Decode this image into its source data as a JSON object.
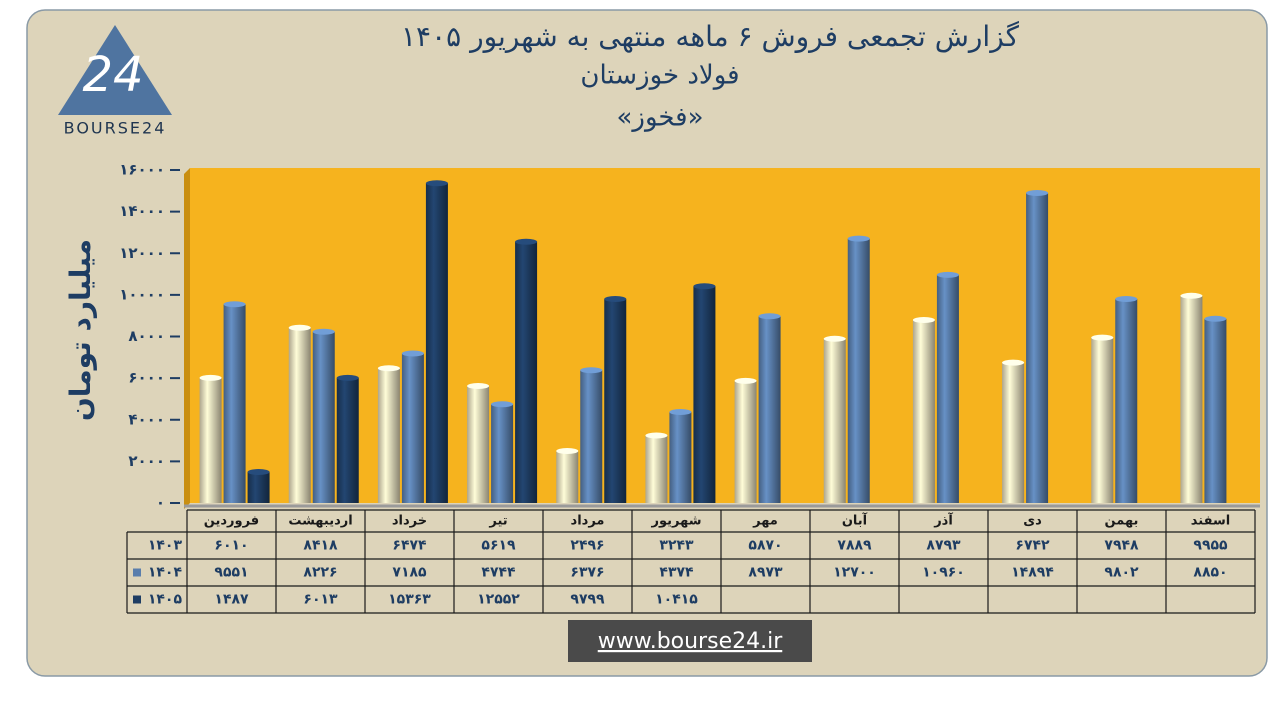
{
  "chart_data": {
    "type": "bar",
    "title": "گزارش تجمعی فروش ۶ ماهه منتهی به شهریور ۱۴۰۵",
    "subtitle": "فولاد خوزستان",
    "symbol": "«فخوز»",
    "y_label": "میلیارد تومان",
    "logo": {
      "mark": "24",
      "text": "BOURSE24"
    },
    "footer": "www.bourse24.ir",
    "categories": [
      "فروردین",
      "اردیبهشت",
      "خرداد",
      "تیر",
      "مرداد",
      "شهریور",
      "مهر",
      "آبان",
      "آذر",
      "دی",
      "بهمن",
      "اسفند"
    ],
    "series": [
      {
        "name": "۱۴۰۳",
        "color": "#e6dcbc",
        "values": [
          6010,
          8418,
          6474,
          5619,
          2496,
          3243,
          5870,
          7889,
          8793,
          6742,
          7948,
          9955
        ],
        "value_labels": [
          "۶۰۱۰",
          "۸۴۱۸",
          "۶۴۷۴",
          "۵۶۱۹",
          "۲۴۹۶",
          "۳۲۴۳",
          "۵۸۷۰",
          "۷۸۸۹",
          "۸۷۹۳",
          "۶۷۴۲",
          "۷۹۴۸",
          "۹۹۵۵"
        ]
      },
      {
        "name": "۱۴۰۴",
        "color": "#5a7eac",
        "values": [
          9551,
          8226,
          7185,
          4744,
          6376,
          4374,
          8973,
          12700,
          10960,
          14894,
          9802,
          8850
        ],
        "value_labels": [
          "۹۵۵۱",
          "۸۲۲۶",
          "۷۱۸۵",
          "۴۷۴۴",
          "۶۳۷۶",
          "۴۳۷۴",
          "۸۹۷۳",
          "۱۲۷۰۰",
          "۱۰۹۶۰",
          "۱۴۸۹۴",
          "۹۸۰۲",
          "۸۸۵۰"
        ]
      },
      {
        "name": "۱۴۰۵",
        "color": "#1e3d63",
        "values": [
          1487,
          6013,
          15363,
          12552,
          9799,
          10415,
          null,
          null,
          null,
          null,
          null,
          null
        ],
        "value_labels": [
          "۱۴۸۷",
          "۶۰۱۳",
          "۱۵۳۶۳",
          "۱۲۵۵۲",
          "۹۷۹۹",
          "۱۰۴۱۵",
          null,
          null,
          null,
          null,
          null,
          null
        ]
      }
    ],
    "ylim": [
      0,
      16000
    ],
    "yticks": [
      {
        "value": 0,
        "label": "۰"
      },
      {
        "value": 2000,
        "label": "۲۰۰۰"
      },
      {
        "value": 4000,
        "label": "۴۰۰۰"
      },
      {
        "value": 6000,
        "label": "۶۰۰۰"
      },
      {
        "value": 8000,
        "label": "۸۰۰۰"
      },
      {
        "value": 10000,
        "label": "۱۰۰۰۰"
      },
      {
        "value": 12000,
        "label": "۱۲۰۰۰"
      },
      {
        "value": 14000,
        "label": "۱۴۰۰۰"
      },
      {
        "value": 16000,
        "label": "۱۶۰۰۰"
      }
    ],
    "plot_color": "#f6b31e"
  }
}
